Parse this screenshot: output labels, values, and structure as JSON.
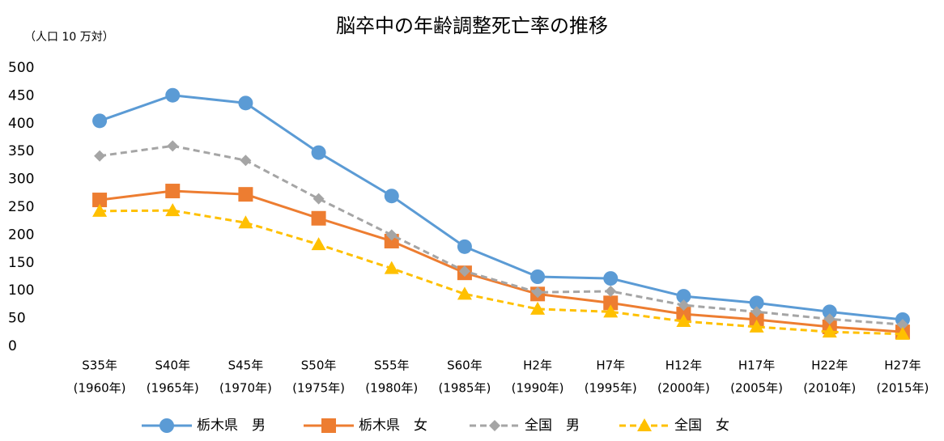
{
  "chart_data": {
    "type": "line",
    "title": "脳卒中の年齢調整死亡率の推移",
    "y_axis_label": "（人口 10 万対）",
    "categories": [
      [
        "S35年",
        "(1960年)"
      ],
      [
        "S40年",
        "(1965年)"
      ],
      [
        "S45年",
        "(1970年)"
      ],
      [
        "S50年",
        "(1975年)"
      ],
      [
        "S55年",
        "(1980年)"
      ],
      [
        "S60年",
        "(1985年)"
      ],
      [
        "H2年",
        "(1990年)"
      ],
      [
        "H7年",
        "(1995年)"
      ],
      [
        "H12年",
        "(2000年)"
      ],
      [
        "H17年",
        "(2005年)"
      ],
      [
        "H22年",
        "(2010年)"
      ],
      [
        "H27年",
        "(2015年)"
      ]
    ],
    "series": [
      {
        "name": "栃木県　男",
        "color": "#5b9bd5",
        "marker": "circle",
        "dashed": false,
        "values": [
          405,
          451,
          437,
          348,
          270,
          179,
          125,
          122,
          90,
          78,
          62,
          48
        ]
      },
      {
        "name": "栃木県　女",
        "color": "#ed7d31",
        "marker": "square",
        "dashed": false,
        "values": [
          263,
          279,
          273,
          230,
          189,
          132,
          94,
          78,
          58,
          48,
          35,
          26
        ]
      },
      {
        "name": "全国　男",
        "color": "#a5a5a5",
        "marker": "diamond",
        "dashed": true,
        "values": [
          342,
          360,
          334,
          265,
          200,
          135,
          97,
          99,
          74,
          62,
          49,
          39
        ]
      },
      {
        "name": "全国　女",
        "color": "#ffc000",
        "marker": "triangle",
        "dashed": true,
        "values": [
          243,
          244,
          222,
          183,
          140,
          94,
          67,
          62,
          45,
          35,
          26,
          22
        ]
      }
    ],
    "ylim": [
      0,
      500
    ],
    "yticks": [
      0,
      50,
      100,
      150,
      200,
      250,
      300,
      350,
      400,
      450,
      500
    ],
    "grid": false,
    "legend": "bottom"
  }
}
